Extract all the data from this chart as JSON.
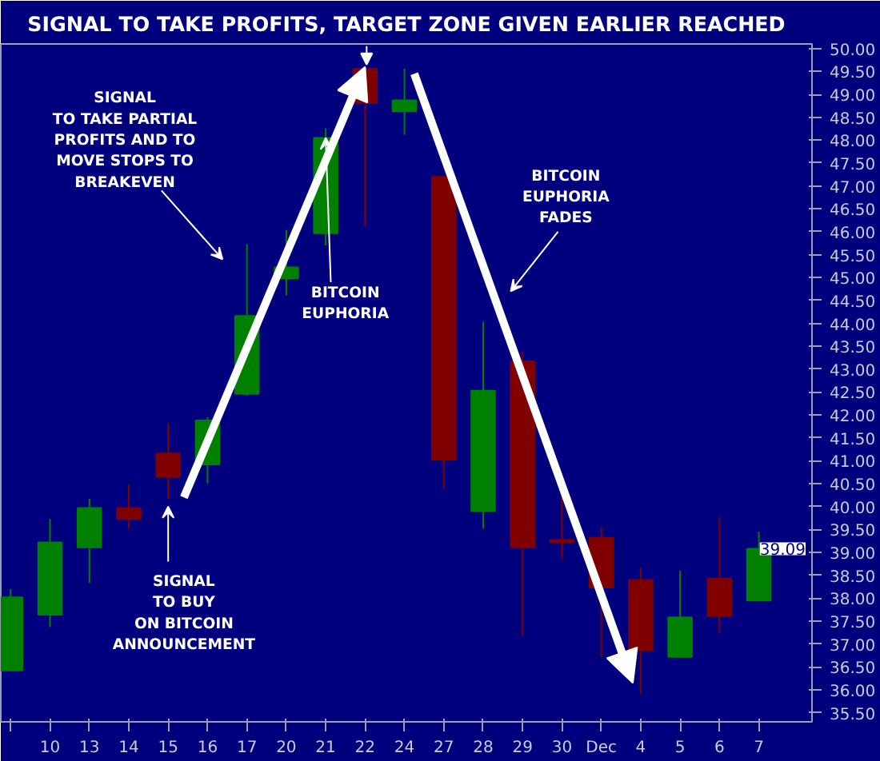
{
  "chart_data": {
    "type": "candlestick",
    "title": "SIGNAL TO TAKE PROFITS, TARGET ZONE GIVEN EARLIER REACHED",
    "categories": [
      null,
      "10",
      "13",
      "14",
      "15",
      "16",
      "17",
      "20",
      "21",
      "22",
      "24",
      "27",
      "28",
      "29",
      "30",
      "Dec",
      "4",
      "5",
      "6",
      "7"
    ],
    "ohlc": [
      [
        36.42,
        38.2,
        36.4,
        38.02
      ],
      [
        37.64,
        39.73,
        37.37,
        39.22
      ],
      [
        39.11,
        40.17,
        38.33,
        39.97
      ],
      [
        39.97,
        40.48,
        39.52,
        39.73
      ],
      [
        41.16,
        41.81,
        40.17,
        40.65
      ],
      [
        40.92,
        41.95,
        40.51,
        41.88
      ],
      [
        42.46,
        45.73,
        42.42,
        44.16
      ],
      [
        44.98,
        46.04,
        44.61,
        45.22
      ],
      [
        45.97,
        48.26,
        45.7,
        48.05
      ],
      [
        49.56,
        49.6,
        46.11,
        48.81
      ],
      [
        48.63,
        49.56,
        48.12,
        48.87
      ],
      [
        47.2,
        47.2,
        40.38,
        41.02
      ],
      [
        39.9,
        44.03,
        39.52,
        42.53
      ],
      [
        43.17,
        43.38,
        37.17,
        39.11
      ],
      [
        39.27,
        40.31,
        38.84,
        39.22
      ],
      [
        39.32,
        39.56,
        36.72,
        38.23
      ],
      [
        38.4,
        38.67,
        35.9,
        36.86
      ],
      [
        36.72,
        38.6,
        36.72,
        37.58
      ],
      [
        38.43,
        39.76,
        37.24,
        37.61
      ],
      [
        37.95,
        39.45,
        37.95,
        39.08
      ]
    ],
    "colors": [
      "#008000",
      "#008000",
      "#008000",
      "#800000",
      "#800000",
      "#008000",
      "#008000",
      "#008000",
      "#008000",
      "#800000",
      "#008000",
      "#800000",
      "#008000",
      "#800000",
      "#800000",
      "#800000",
      "#800000",
      "#008000",
      "#800000",
      "#008000"
    ],
    "ylim": [
      35.3,
      50.1
    ],
    "yticks": [
      {
        "value": 35.5,
        "label": "35.50"
      },
      {
        "value": 36,
        "label": "36.00"
      },
      {
        "value": 36.5,
        "label": "36.50"
      },
      {
        "value": 37,
        "label": "37.00"
      },
      {
        "value": 37.5,
        "label": "37.50"
      },
      {
        "value": 38,
        "label": "38.00"
      },
      {
        "value": 38.5,
        "label": "38.50"
      },
      {
        "value": 39,
        "label": "39.00"
      },
      {
        "value": 39.5,
        "label": "39.50"
      },
      {
        "value": 40,
        "label": "40.00"
      },
      {
        "value": 40.5,
        "label": "40.50"
      },
      {
        "value": 41,
        "label": "41.00"
      },
      {
        "value": 41.5,
        "label": "41.50"
      },
      {
        "value": 42,
        "label": "42.00"
      },
      {
        "value": 42.5,
        "label": "42.50"
      },
      {
        "value": 43,
        "label": "43.00"
      },
      {
        "value": 43.5,
        "label": "43.50"
      },
      {
        "value": 44,
        "label": "44.00"
      },
      {
        "value": 44.5,
        "label": "44.50"
      },
      {
        "value": 45,
        "label": "45.00"
      },
      {
        "value": 45.5,
        "label": "45.50"
      },
      {
        "value": 46,
        "label": "46.00"
      },
      {
        "value": 46.5,
        "label": "46.50"
      },
      {
        "value": 47,
        "label": "47.00"
      },
      {
        "value": 47.5,
        "label": "47.50"
      },
      {
        "value": 48,
        "label": "48.00"
      },
      {
        "value": 48.5,
        "label": "48.50"
      },
      {
        "value": 49,
        "label": "49.00"
      },
      {
        "value": 49.5,
        "label": "49.50"
      },
      {
        "value": 50,
        "label": "50.00"
      }
    ],
    "grid": false,
    "annotations": [
      "SIGNAL\nTO TAKE PARTIAL\nPROFITS AND TO\nMOVE STOPS TO\nBREAKEVEN",
      {
        "text": "BITCOIN\nEUPHORIA",
        "x": "21",
        "y": 48.05
      },
      "BITCOIN\nEUPHORIA\nFADES",
      "SIGNAL\nTO BUY\nON BITCOIN\nANNOUNCEMENT",
      "39.09"
    ]
  }
}
